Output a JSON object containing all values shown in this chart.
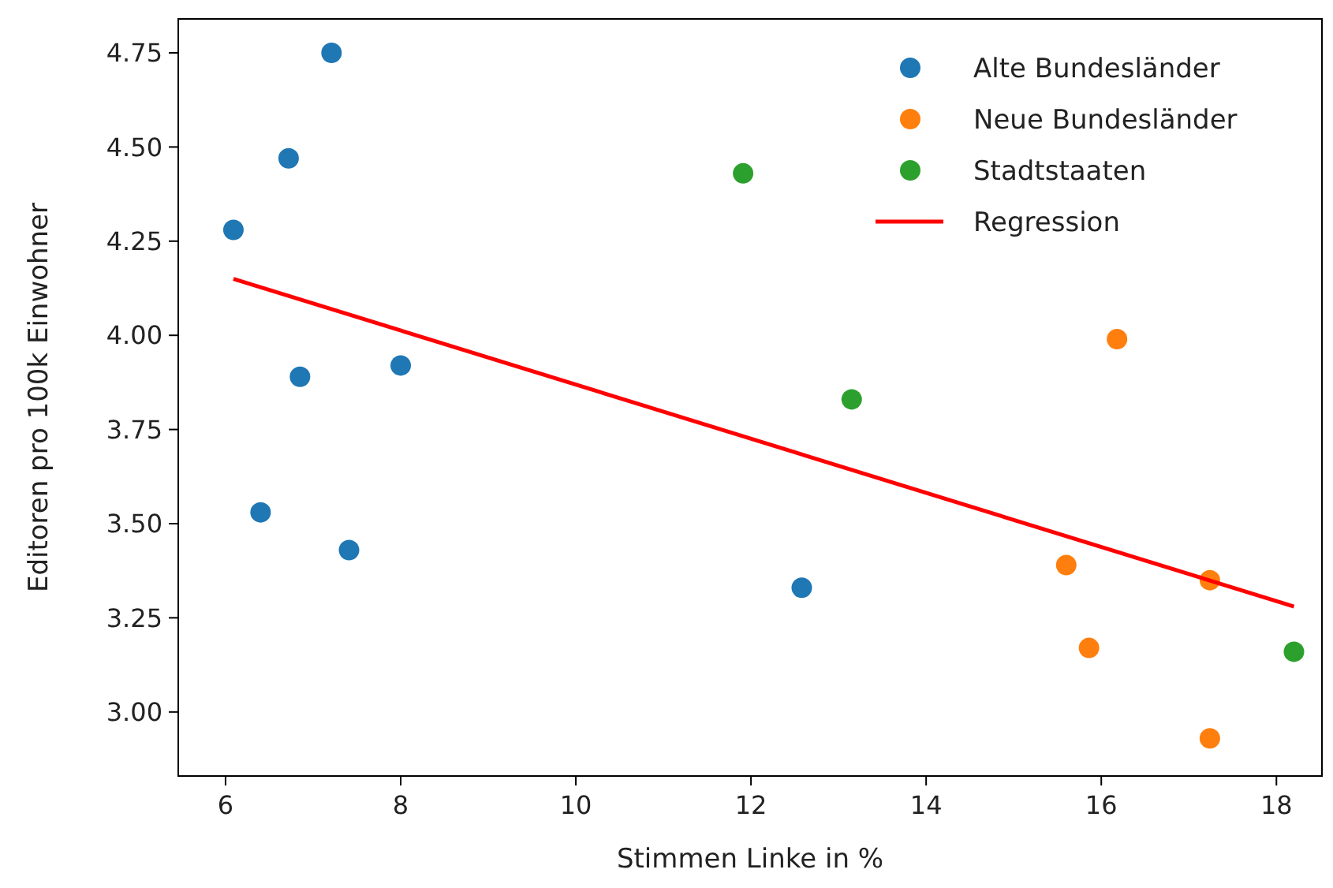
{
  "chart_data": {
    "type": "scatter",
    "xlabel": "Stimmen Linke in %",
    "ylabel": "Editoren pro 100k Einwohner",
    "xlim": [
      5.46,
      18.52
    ],
    "ylim": [
      2.83,
      4.84
    ],
    "xticks": [
      6,
      8,
      10,
      12,
      14,
      16,
      18
    ],
    "yticks": [
      {
        "value": 3,
        "label": "3.00"
      },
      3.25,
      {
        "value": 3.5,
        "label": "3.50"
      },
      3.75,
      {
        "value": 4,
        "label": "4.00"
      },
      4.25,
      {
        "value": 4.5,
        "label": "4.50"
      },
      4.75
    ],
    "grid": false,
    "legend": "top right",
    "marker": "circle",
    "series": [
      {
        "name": "Alte Bundesländer",
        "color": "#1f77b4",
        "x": [
          6.09,
          6.4,
          6.72,
          6.85,
          7.21,
          7.41,
          8.0,
          12.58
        ],
        "values": [
          4.28,
          3.53,
          4.47,
          3.89,
          4.75,
          3.43,
          3.92,
          3.33
        ]
      },
      {
        "name": "Neue Bundesländer",
        "color": "#ff7f0e",
        "x": [
          16.18,
          15.6,
          15.86,
          17.24,
          17.24
        ],
        "values": [
          3.99,
          3.39,
          3.17,
          3.35,
          2.93
        ]
      },
      {
        "name": "Stadtstaaten",
        "color": "#2ca02c",
        "x": [
          11.91,
          13.15,
          18.2
        ],
        "values": [
          4.43,
          3.83,
          3.16
        ]
      },
      {
        "name": "Regression",
        "type": "line",
        "color": "#ff0000",
        "line_style": "solid",
        "marker": "none",
        "x": [
          6.09,
          18.2
        ],
        "values": [
          4.15,
          3.28
        ]
      }
    ]
  }
}
